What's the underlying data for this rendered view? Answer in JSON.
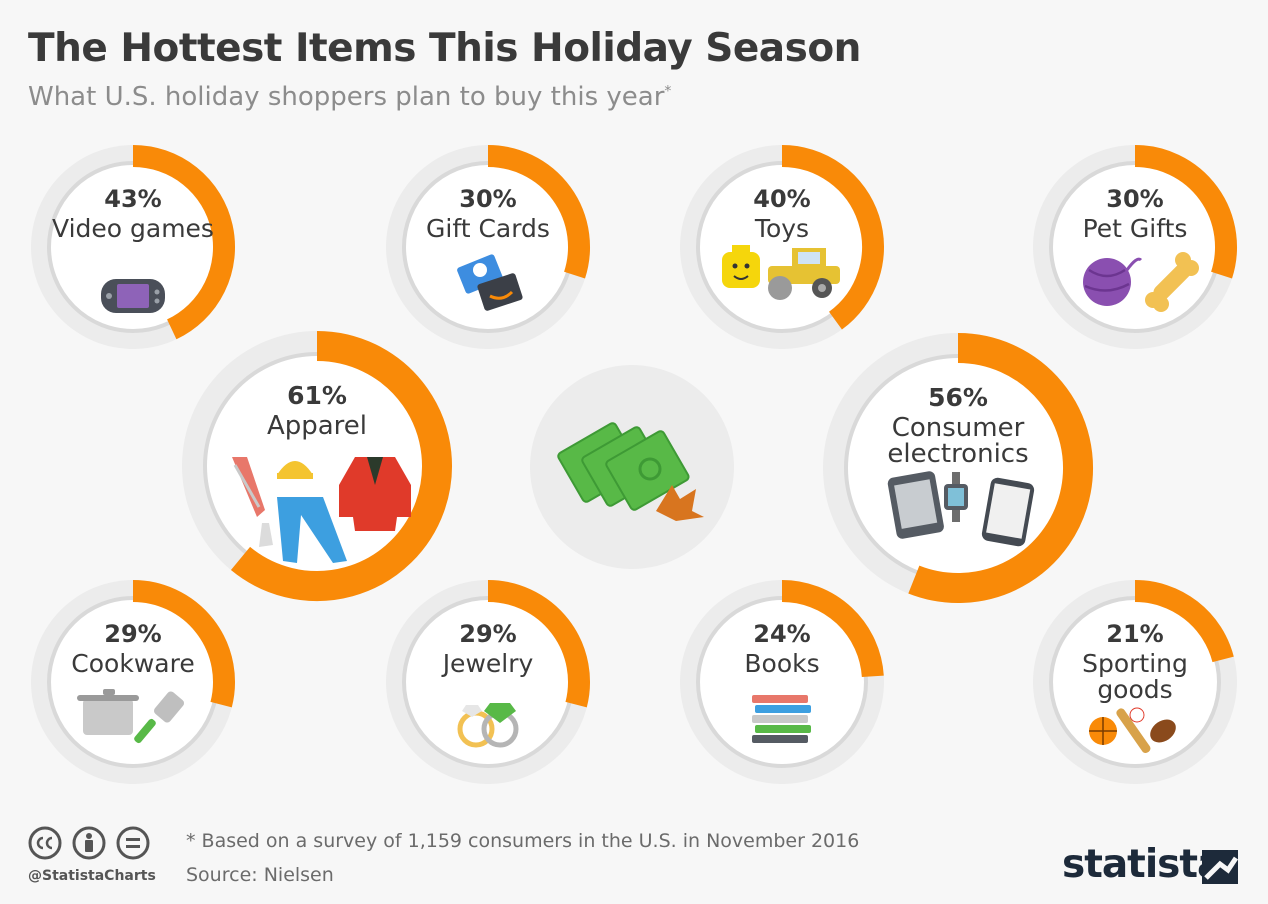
{
  "header": {
    "title": "The Hottest Items This Holiday Season",
    "subtitle": "What U.S. holiday shoppers plan to buy this year",
    "subtitle_mark": "*"
  },
  "footer": {
    "note": "* Based on a survey of 1,159 consumers in the U.S. in November 2016",
    "source": "Source: Nielsen",
    "handle": "@StatistaCharts",
    "logo": "statista"
  },
  "colors": {
    "accent": "#f98a08",
    "track": "#d9d9d9",
    "halo": "#ececec",
    "text": "#3a3a3a"
  },
  "chart_data": {
    "type": "donut",
    "unit": "%",
    "items": [
      {
        "label": "Video games",
        "value": 43,
        "value_label": "43%",
        "icon": "game-console-icon"
      },
      {
        "label": "Gift Cards",
        "value": 30,
        "value_label": "30%",
        "icon": "gift-cards-icon"
      },
      {
        "label": "Toys",
        "value": 40,
        "value_label": "40%",
        "icon": "toys-icon"
      },
      {
        "label": "Pet Gifts",
        "value": 30,
        "value_label": "30%",
        "icon": "pet-gifts-icon"
      },
      {
        "label": "Apparel",
        "value": 61,
        "value_label": "61%",
        "icon": "apparel-icon"
      },
      {
        "label": "Consumer electronics",
        "value": 56,
        "value_label": "56%",
        "icon": "electronics-icon"
      },
      {
        "label": "Cookware",
        "value": 29,
        "value_label": "29%",
        "icon": "cookware-icon"
      },
      {
        "label": "Jewelry",
        "value": 29,
        "value_label": "29%",
        "icon": "rings-icon"
      },
      {
        "label": "Books",
        "value": 24,
        "value_label": "24%",
        "icon": "books-icon"
      },
      {
        "label": "Sporting goods",
        "value": 21,
        "value_label": "21%",
        "icon": "sports-balls-icon"
      }
    ],
    "center_icon": "money-leaf-icon"
  }
}
